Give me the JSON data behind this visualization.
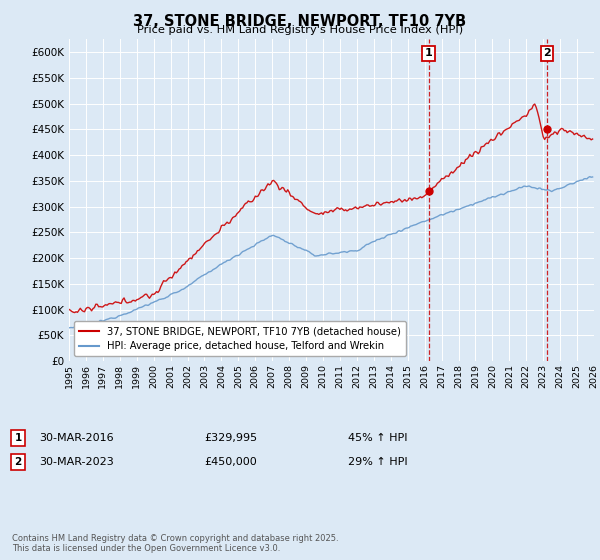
{
  "title": "37, STONE BRIDGE, NEWPORT, TF10 7YB",
  "subtitle": "Price paid vs. HM Land Registry's House Price Index (HPI)",
  "background_color": "#dce9f5",
  "plot_background": "#dce9f5",
  "ylim": [
    0,
    625000
  ],
  "yticks": [
    0,
    50000,
    100000,
    150000,
    200000,
    250000,
    300000,
    350000,
    400000,
    450000,
    500000,
    550000,
    600000
  ],
  "xlim_start": 1995,
  "xlim_end": 2026,
  "sale1_x": 2016.23,
  "sale1_y": 329995,
  "sale2_x": 2023.23,
  "sale2_y": 450000,
  "marker1_date": "30-MAR-2016",
  "marker1_price": "£329,995",
  "marker1_hpi": "45% ↑ HPI",
  "marker2_date": "30-MAR-2023",
  "marker2_price": "£450,000",
  "marker2_hpi": "29% ↑ HPI",
  "line1_label": "37, STONE BRIDGE, NEWPORT, TF10 7YB (detached house)",
  "line1_color": "#cc0000",
  "line2_label": "HPI: Average price, detached house, Telford and Wrekin",
  "line2_color": "#6699cc",
  "vline_color": "#cc0000",
  "marker_box_color": "#cc0000",
  "grid_color": "#ffffff",
  "footer": "Contains HM Land Registry data © Crown copyright and database right 2025.\nThis data is licensed under the Open Government Licence v3.0."
}
